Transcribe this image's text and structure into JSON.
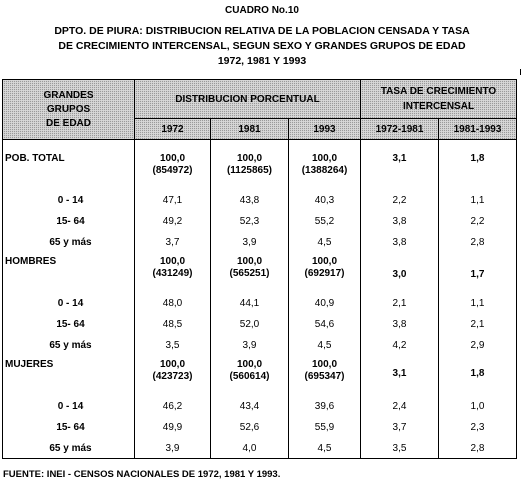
{
  "title": "CUADRO No.10",
  "subtitle_lines": [
    "DPTO. DE PIURA: DISTRIBUCION RELATIVA DE LA POBLACION CENSADA Y TASA",
    "DE CRECIMIENTO INTERCENSAL, SEGUN SEXO Y GRANDES GRUPOS DE EDAD",
    "1972, 1981 Y 1993"
  ],
  "header": {
    "grandes": [
      "GRANDES",
      "GRUPOS",
      "DE EDAD"
    ],
    "distribucion": "DISTRIBUCION PORCENTUAL",
    "tasa": [
      "TASA DE CRECIMIENTO",
      "INTERCENSAL"
    ],
    "years": [
      "1972",
      "1981",
      "1993"
    ],
    "periods": [
      "1972-1981",
      "1981-1993"
    ]
  },
  "groups": [
    {
      "label": "POB. TOTAL",
      "pct": [
        "100,0",
        "100,0",
        "100,0"
      ],
      "abs": [
        "(854972)",
        "(1125865)",
        "(1388264)"
      ],
      "tasa": [
        "3,1",
        "1,8"
      ],
      "rows": [
        {
          "label": "0 - 14",
          "values": [
            "47,1",
            "43,8",
            "40,3",
            "2,2",
            "1,1"
          ]
        },
        {
          "label": "15- 64",
          "values": [
            "49,2",
            "52,3",
            "55,2",
            "3,8",
            "2,2"
          ]
        },
        {
          "label": "65 y más",
          "values": [
            "3,7",
            "3,9",
            "4,5",
            "3,8",
            "2,8"
          ]
        }
      ]
    },
    {
      "label": "HOMBRES",
      "pct": [
        "100,0",
        "100,0",
        "100,0"
      ],
      "abs": [
        "(431249)",
        "(565251)",
        "(692917)"
      ],
      "tasa": [
        "3,0",
        "1,7"
      ],
      "rows": [
        {
          "label": "0 - 14",
          "values": [
            "48,0",
            "44,1",
            "40,9",
            "2,1",
            "1,1"
          ]
        },
        {
          "label": "15- 64",
          "values": [
            "48,5",
            "52,0",
            "54,6",
            "3,8",
            "2,1"
          ]
        },
        {
          "label": "65 y más",
          "values": [
            "3,5",
            "3,9",
            "4,5",
            "4,2",
            "2,9"
          ]
        }
      ]
    },
    {
      "label": "MUJERES",
      "pct": [
        "100,0",
        "100,0",
        "100,0"
      ],
      "abs": [
        "(423723)",
        "(560614)",
        "(695347)"
      ],
      "tasa": [
        "3,1",
        "1,8"
      ],
      "rows": [
        {
          "label": "0 - 14",
          "values": [
            "46,2",
            "43,4",
            "39,6",
            "2,4",
            "1,0"
          ]
        },
        {
          "label": "15- 64",
          "values": [
            "49,9",
            "52,6",
            "55,9",
            "3,7",
            "2,3"
          ]
        },
        {
          "label": "65 y más",
          "values": [
            "3,9",
            "4,0",
            "4,5",
            "3,5",
            "2,8"
          ]
        }
      ]
    }
  ],
  "footer": "FUENTE: INEI - CENSOS NACIONALES DE 1972, 1981 Y 1993."
}
